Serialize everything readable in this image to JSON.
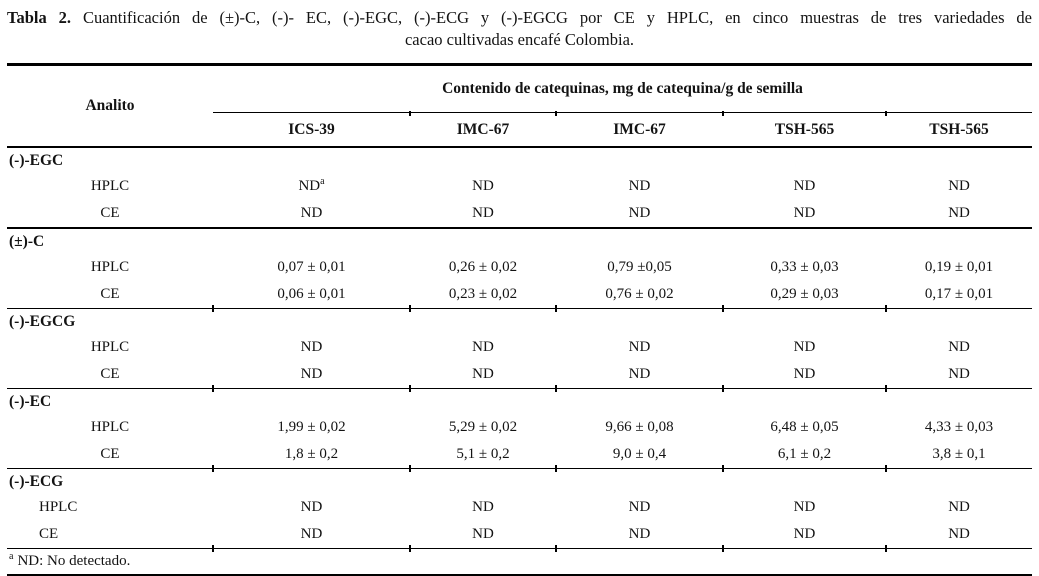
{
  "page": {
    "background": "#ffffff",
    "text_color": "#131313"
  },
  "title": {
    "label": "Tabla 2.",
    "line1_rest": "Cuantificación de (±)-C, (-)- EC, (-)-EGC, (-)-ECG y (-)-EGCG por CE y HPLC, en cinco muestras de tres variedades de",
    "line2": "cacao cultivadas encafé Colombia."
  },
  "table": {
    "analito_header": "Analito",
    "group_header": "Contenido de catequinas, mg de catequina/g de semilla",
    "columns": [
      "ICS-39",
      "IMC-67",
      "IMC-67",
      "TSH-565",
      "TSH-565"
    ],
    "sections": [
      {
        "analyte": "(-)-EGC",
        "rows": [
          {
            "method": "HPLC",
            "values": [
              {
                "v": "ND",
                "sup": "a"
              },
              "ND",
              "ND",
              "ND",
              "ND"
            ]
          },
          {
            "method": "CE",
            "values": [
              "ND",
              "ND",
              "ND",
              "ND",
              "ND"
            ]
          }
        ]
      },
      {
        "analyte": "(±)-C",
        "rows": [
          {
            "method": "HPLC",
            "values": [
              "0,07 ± 0,01",
              "0,26 ± 0,02",
              "0,79 ±0,05",
              "0,33 ± 0,03",
              "0,19 ± 0,01"
            ]
          },
          {
            "method": "CE",
            "values": [
              "0,06 ± 0,01",
              "0,23 ± 0,02",
              "0,76 ± 0,02",
              "0,29 ± 0,03",
              "0,17 ± 0,01"
            ]
          }
        ]
      },
      {
        "analyte": "(-)-EGCG",
        "rows": [
          {
            "method": "HPLC",
            "values": [
              "ND",
              "ND",
              "ND",
              "ND",
              "ND"
            ]
          },
          {
            "method": "CE",
            "values": [
              "ND",
              "ND",
              "ND",
              "ND",
              "ND"
            ]
          }
        ]
      },
      {
        "analyte": "(-)-EC",
        "rows": [
          {
            "method": "HPLC",
            "values": [
              "1,99 ± 0,02",
              "5,29 ± 0,02",
              "9,66 ± 0,08",
              "6,48 ± 0,05",
              "4,33 ± 0,03"
            ]
          },
          {
            "method": "CE",
            "values": [
              "1,8 ± 0,2",
              "5,1 ± 0,2",
              "9,0 ± 0,4",
              "6,1 ± 0,2",
              "3,8 ± 0,1"
            ]
          }
        ]
      },
      {
        "analyte": "(-)-ECG",
        "rows": [
          {
            "method": "HPLC",
            "values": [
              "ND",
              "ND",
              "ND",
              "ND",
              "ND"
            ]
          },
          {
            "method": "CE",
            "values": [
              "ND",
              "ND",
              "ND",
              "ND",
              "ND"
            ]
          }
        ]
      }
    ],
    "footnote": {
      "sup": "a",
      "text": "ND: No detectado."
    }
  }
}
